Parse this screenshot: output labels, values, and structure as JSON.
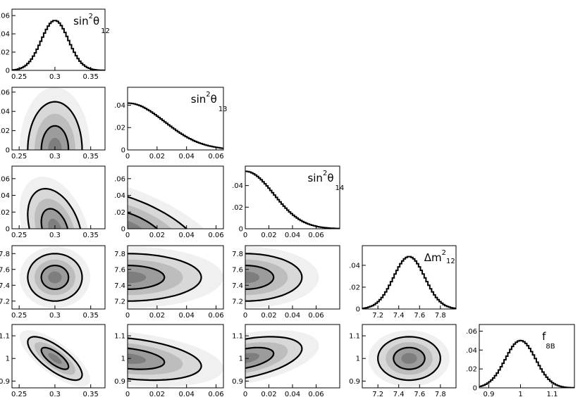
{
  "colors": {
    "frame": "#000000",
    "histogram_line": "#000000",
    "contour_line": "#000000",
    "density_fills": [
      "#f0f0f0",
      "#d8d8d8",
      "#bdbdbd",
      "#9c9c9c",
      "#7e7e7e"
    ]
  },
  "chart_data": {
    "type": "corner",
    "parameters": [
      {
        "key": "s12",
        "label": {
          "base": "sin",
          "sup": "2",
          "base2": "θ",
          "sub": "12"
        },
        "range": [
          0.24,
          0.37
        ],
        "ticks": [
          0.25,
          0.3,
          0.35
        ],
        "tick_labels": [
          "0.25",
          "0.3",
          "0.35"
        ],
        "mean": 0.3,
        "sigma": 0.019,
        "shape": "gauss",
        "hist_ylim": [
          0,
          0.067
        ],
        "hist_yticks": [
          0,
          0.02,
          0.04,
          0.06
        ],
        "hist_ytick_labels": [
          "0",
          ".02",
          ".04",
          ".06"
        ]
      },
      {
        "key": "s13",
        "label": {
          "base": "sin",
          "sup": "2",
          "base2": "θ",
          "sub": "13"
        },
        "range": [
          0,
          0.065
        ],
        "ticks": [
          0,
          0.02,
          0.04,
          0.06
        ],
        "tick_labels": [
          "0",
          "0.02",
          "0.04",
          "0.06"
        ],
        "mean": 0.0,
        "sigma": 0.025,
        "shape": "half",
        "hist_ylim": [
          0,
          0.056
        ],
        "hist_yticks": [
          0,
          0.02,
          0.04
        ],
        "hist_ytick_labels": [
          "0",
          ".02",
          ".04"
        ]
      },
      {
        "key": "s14",
        "label": {
          "base": "sin",
          "sup": "2",
          "base2": "θ",
          "sub": "14"
        },
        "range": [
          0,
          0.08
        ],
        "ticks": [
          0,
          0.02,
          0.04,
          0.06
        ],
        "tick_labels": [
          "0",
          "0.02",
          "0.04",
          "0.06"
        ],
        "mean": 0.0,
        "sigma": 0.024,
        "shape": "half",
        "hist_ylim": [
          0,
          0.058
        ],
        "hist_yticks": [
          0,
          0.02,
          0.04
        ],
        "hist_ytick_labels": [
          "0",
          ".02",
          ".04"
        ]
      },
      {
        "key": "dm12",
        "label": {
          "base": "Δm",
          "sup": "2",
          "base2": "",
          "sub": "12"
        },
        "range": [
          7.05,
          7.95
        ],
        "ticks": [
          7.2,
          7.4,
          7.6,
          7.8
        ],
        "tick_labels": [
          "7.2",
          "7.4",
          "7.6",
          "7.8"
        ],
        "mean": 7.5,
        "sigma": 0.15,
        "shape": "gauss",
        "hist_ylim": [
          0,
          0.058
        ],
        "hist_yticks": [
          0,
          0.02,
          0.04
        ],
        "hist_ytick_labels": [
          "0",
          ".02",
          ".04"
        ]
      },
      {
        "key": "f8b",
        "label": {
          "base": "f",
          "sup": "",
          "base2": "",
          "sub": "8",
          "sub2": "B"
        },
        "range": [
          0.87,
          1.17
        ],
        "ticks": [
          0.9,
          1.0,
          1.1
        ],
        "tick_labels": [
          "0.9",
          "1",
          "1.1"
        ],
        "mean": 1.0,
        "sigma": 0.048,
        "shape": "gauss",
        "hist_ylim": [
          0,
          0.067
        ],
        "hist_yticks": [
          0,
          0.02,
          0.04,
          0.06
        ],
        "hist_ytick_labels": [
          "0",
          ".02",
          ".04",
          ".06"
        ]
      }
    ],
    "pair_y_axes": {
      "s13": {
        "range": [
          0,
          0.065
        ],
        "ticks": [
          0,
          0.02,
          0.04,
          0.06
        ],
        "tick_labels": [
          "0",
          ".02",
          ".04",
          ".06"
        ]
      },
      "s14": {
        "range": [
          0,
          0.075
        ],
        "ticks": [
          0,
          0.02,
          0.04,
          0.06
        ],
        "tick_labels": [
          "0",
          ".02",
          ".04",
          ".06"
        ]
      },
      "dm12": {
        "range": [
          7.1,
          7.9
        ],
        "ticks": [
          7.2,
          7.4,
          7.6,
          7.8
        ],
        "tick_labels": [
          "7.2",
          "7.4",
          "7.6",
          "7.8"
        ]
      },
      "f8b": {
        "range": [
          0.87,
          1.15
        ],
        "ticks": [
          0.9,
          1.0,
          1.1
        ],
        "tick_labels": [
          "0.9",
          "1",
          "1.1"
        ]
      }
    },
    "pairs": [
      {
        "x": "s12",
        "y": "s13",
        "center": [
          0.3,
          0.0
        ],
        "sigma": [
          0.019,
          0.025
        ],
        "rho": 0.0
      },
      {
        "x": "s12",
        "y": "s14",
        "center": [
          0.3,
          0.0
        ],
        "sigma": [
          0.019,
          0.024
        ],
        "rho": -0.35
      },
      {
        "x": "s13",
        "y": "s14",
        "center": [
          0.0,
          0.0
        ],
        "sigma": [
          0.025,
          0.024
        ],
        "rho": -0.6
      },
      {
        "x": "s12",
        "y": "dm12",
        "center": [
          0.3,
          7.5
        ],
        "sigma": [
          0.019,
          0.15
        ],
        "rho": 0.0
      },
      {
        "x": "s13",
        "y": "dm12",
        "center": [
          0.0,
          7.5
        ],
        "sigma": [
          0.025,
          0.15
        ],
        "rho": 0.0
      },
      {
        "x": "s14",
        "y": "dm12",
        "center": [
          0.0,
          7.5
        ],
        "sigma": [
          0.024,
          0.15
        ],
        "rho": 0.0
      },
      {
        "x": "s12",
        "y": "f8b",
        "center": [
          0.3,
          1.0
        ],
        "sigma": [
          0.019,
          0.048
        ],
        "rho": -0.75
      },
      {
        "x": "s13",
        "y": "f8b",
        "center": [
          0.0,
          1.0
        ],
        "sigma": [
          0.025,
          0.048
        ],
        "rho": -0.35
      },
      {
        "x": "s14",
        "y": "f8b",
        "center": [
          0.0,
          1.0
        ],
        "sigma": [
          0.024,
          0.048
        ],
        "rho": 0.45
      },
      {
        "x": "dm12",
        "y": "f8b",
        "center": [
          7.5,
          1.0
        ],
        "sigma": [
          0.15,
          0.048
        ],
        "rho": 0.0
      }
    ],
    "contour_levels_sigma": [
      1,
      2
    ],
    "density_levels_sigma": [
      2.6,
      2.0,
      1.5,
      1.0,
      0.5
    ]
  }
}
